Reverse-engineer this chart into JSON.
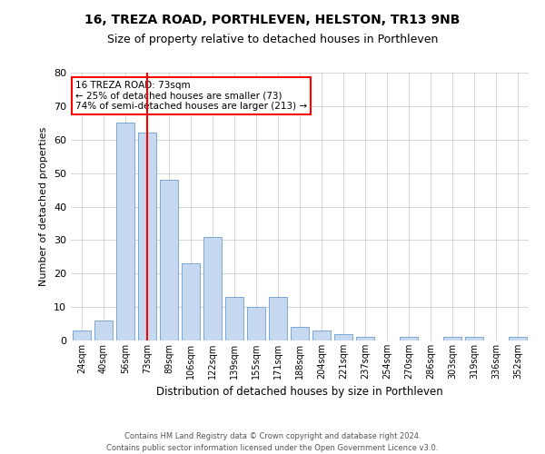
{
  "title": "16, TREZA ROAD, PORTHLEVEN, HELSTON, TR13 9NB",
  "subtitle": "Size of property relative to detached houses in Porthleven",
  "xlabel": "Distribution of detached houses by size in Porthleven",
  "ylabel": "Number of detached properties",
  "bar_labels": [
    "24sqm",
    "40sqm",
    "56sqm",
    "73sqm",
    "89sqm",
    "106sqm",
    "122sqm",
    "139sqm",
    "155sqm",
    "171sqm",
    "188sqm",
    "204sqm",
    "221sqm",
    "237sqm",
    "254sqm",
    "270sqm",
    "286sqm",
    "303sqm",
    "319sqm",
    "336sqm",
    "352sqm"
  ],
  "bar_values": [
    3,
    6,
    65,
    62,
    48,
    23,
    31,
    13,
    10,
    13,
    4,
    3,
    2,
    1,
    0,
    1,
    0,
    1,
    1,
    0,
    1
  ],
  "bar_color": "#c6d9f1",
  "bar_edge_color": "#7ba7d4",
  "vline_x_idx": 3,
  "vline_color": "red",
  "annotation_line1": "16 TREZA ROAD: 73sqm",
  "annotation_line2": "← 25% of detached houses are smaller (73)",
  "annotation_line3": "74% of semi-detached houses are larger (213) →",
  "annotation_box_color": "white",
  "annotation_box_edge_color": "red",
  "footer_text": "Contains HM Land Registry data © Crown copyright and database right 2024.\nContains public sector information licensed under the Open Government Licence v3.0.",
  "ylim": [
    0,
    80
  ],
  "yticks": [
    0,
    10,
    20,
    30,
    40,
    50,
    60,
    70,
    80
  ],
  "background_color": "white",
  "grid_color": "#d0d0d0",
  "title_fontsize": 10,
  "subtitle_fontsize": 9
}
